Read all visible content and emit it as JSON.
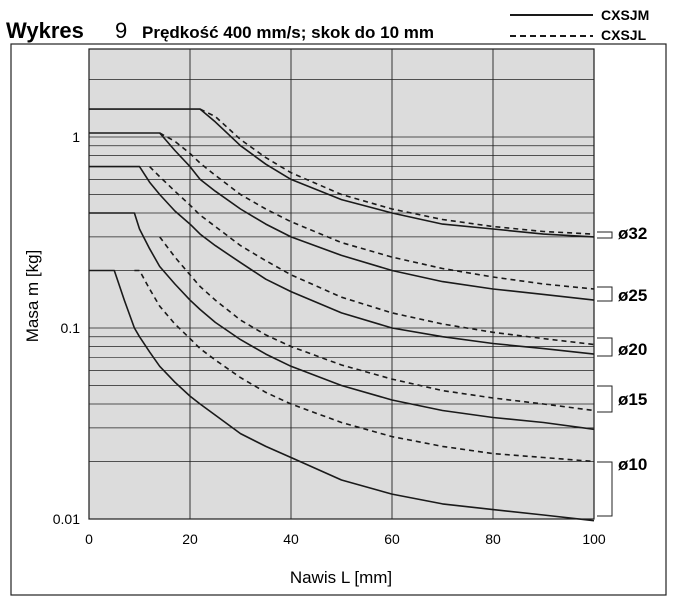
{
  "title": {
    "prefix": "Wykres",
    "number": "9",
    "text": "Prędkość 400 mm/s; skok do 10 mm"
  },
  "legend": [
    {
      "label": "CXSJM",
      "style": "solid"
    },
    {
      "label": "CXSJL",
      "style": "dashed"
    }
  ],
  "chart_data": {
    "type": "line",
    "xlabel": "Nawis L [mm]",
    "ylabel": "Masa m [kg]",
    "xlim": [
      0,
      100
    ],
    "ylim": [
      0.01,
      3
    ],
    "yscale": "log",
    "grid": true,
    "background": "#dcdcdc",
    "x_ticks": [
      "0",
      "20",
      "40",
      "60",
      "80",
      "100"
    ],
    "y_ticks": [
      "0.01",
      "0.1",
      "1"
    ],
    "x": [
      0,
      5,
      7,
      9,
      10,
      12,
      14,
      17,
      20,
      22,
      25,
      30,
      35,
      40,
      50,
      60,
      70,
      80,
      90,
      100
    ],
    "series": [
      {
        "bore": "ø32",
        "style": "solid",
        "y": [
          1.4,
          1.4,
          1.4,
          1.4,
          1.4,
          1.4,
          1.4,
          1.4,
          1.4,
          1.4,
          1.2,
          0.9,
          0.72,
          0.6,
          0.47,
          0.4,
          0.35,
          0.33,
          0.31,
          0.3
        ]
      },
      {
        "bore": "ø32",
        "style": "dashed",
        "y": [
          null,
          null,
          null,
          null,
          null,
          null,
          null,
          null,
          null,
          1.4,
          1.28,
          0.97,
          0.78,
          0.65,
          0.5,
          0.42,
          0.37,
          0.34,
          0.32,
          0.31
        ]
      },
      {
        "bore": "ø25",
        "style": "solid",
        "y": [
          1.05,
          1.05,
          1.05,
          1.05,
          1.05,
          1.05,
          1.05,
          0.85,
          0.7,
          0.6,
          0.52,
          0.42,
          0.35,
          0.3,
          0.24,
          0.2,
          0.175,
          0.16,
          0.15,
          0.14
        ]
      },
      {
        "bore": "ø25",
        "style": "dashed",
        "y": [
          null,
          null,
          null,
          null,
          null,
          null,
          1.05,
          0.95,
          0.82,
          0.73,
          0.63,
          0.5,
          0.42,
          0.36,
          0.28,
          0.235,
          0.205,
          0.185,
          0.17,
          0.16
        ]
      },
      {
        "bore": "ø20",
        "style": "solid",
        "y": [
          0.7,
          0.7,
          0.7,
          0.7,
          0.7,
          0.58,
          0.5,
          0.41,
          0.35,
          0.31,
          0.27,
          0.22,
          0.18,
          0.155,
          0.12,
          0.1,
          0.09,
          0.083,
          0.078,
          0.073
        ]
      },
      {
        "bore": "ø20",
        "style": "dashed",
        "y": [
          null,
          null,
          null,
          null,
          null,
          0.7,
          0.62,
          0.52,
          0.44,
          0.39,
          0.34,
          0.27,
          0.225,
          0.19,
          0.145,
          0.12,
          0.105,
          0.095,
          0.088,
          0.082
        ]
      },
      {
        "bore": "ø15",
        "style": "solid",
        "y": [
          0.4,
          0.4,
          0.4,
          0.4,
          0.33,
          0.26,
          0.21,
          0.17,
          0.14,
          0.125,
          0.107,
          0.087,
          0.073,
          0.063,
          0.05,
          0.042,
          0.037,
          0.034,
          0.032,
          0.0295
        ]
      },
      {
        "bore": "ø15",
        "style": "dashed",
        "y": [
          null,
          null,
          null,
          null,
          null,
          null,
          0.3,
          0.235,
          0.19,
          0.165,
          0.14,
          0.11,
          0.092,
          0.08,
          0.064,
          0.054,
          0.047,
          0.043,
          0.04,
          0.037
        ]
      },
      {
        "bore": "ø10",
        "style": "solid",
        "y": [
          0.2,
          0.2,
          0.14,
          0.1,
          0.09,
          0.075,
          0.063,
          0.052,
          0.044,
          0.04,
          0.035,
          0.028,
          0.024,
          0.021,
          0.016,
          0.0135,
          0.012,
          0.0112,
          0.0105,
          0.0098
        ]
      },
      {
        "bore": "ø10",
        "style": "dashed",
        "y": [
          null,
          null,
          null,
          0.2,
          0.2,
          0.16,
          0.13,
          0.105,
          0.088,
          0.078,
          0.068,
          0.055,
          0.046,
          0.04,
          0.032,
          0.027,
          0.024,
          0.022,
          0.021,
          0.02
        ]
      }
    ],
    "bore_labels": [
      "ø32",
      "ø25",
      "ø20",
      "ø15",
      "ø10"
    ]
  }
}
